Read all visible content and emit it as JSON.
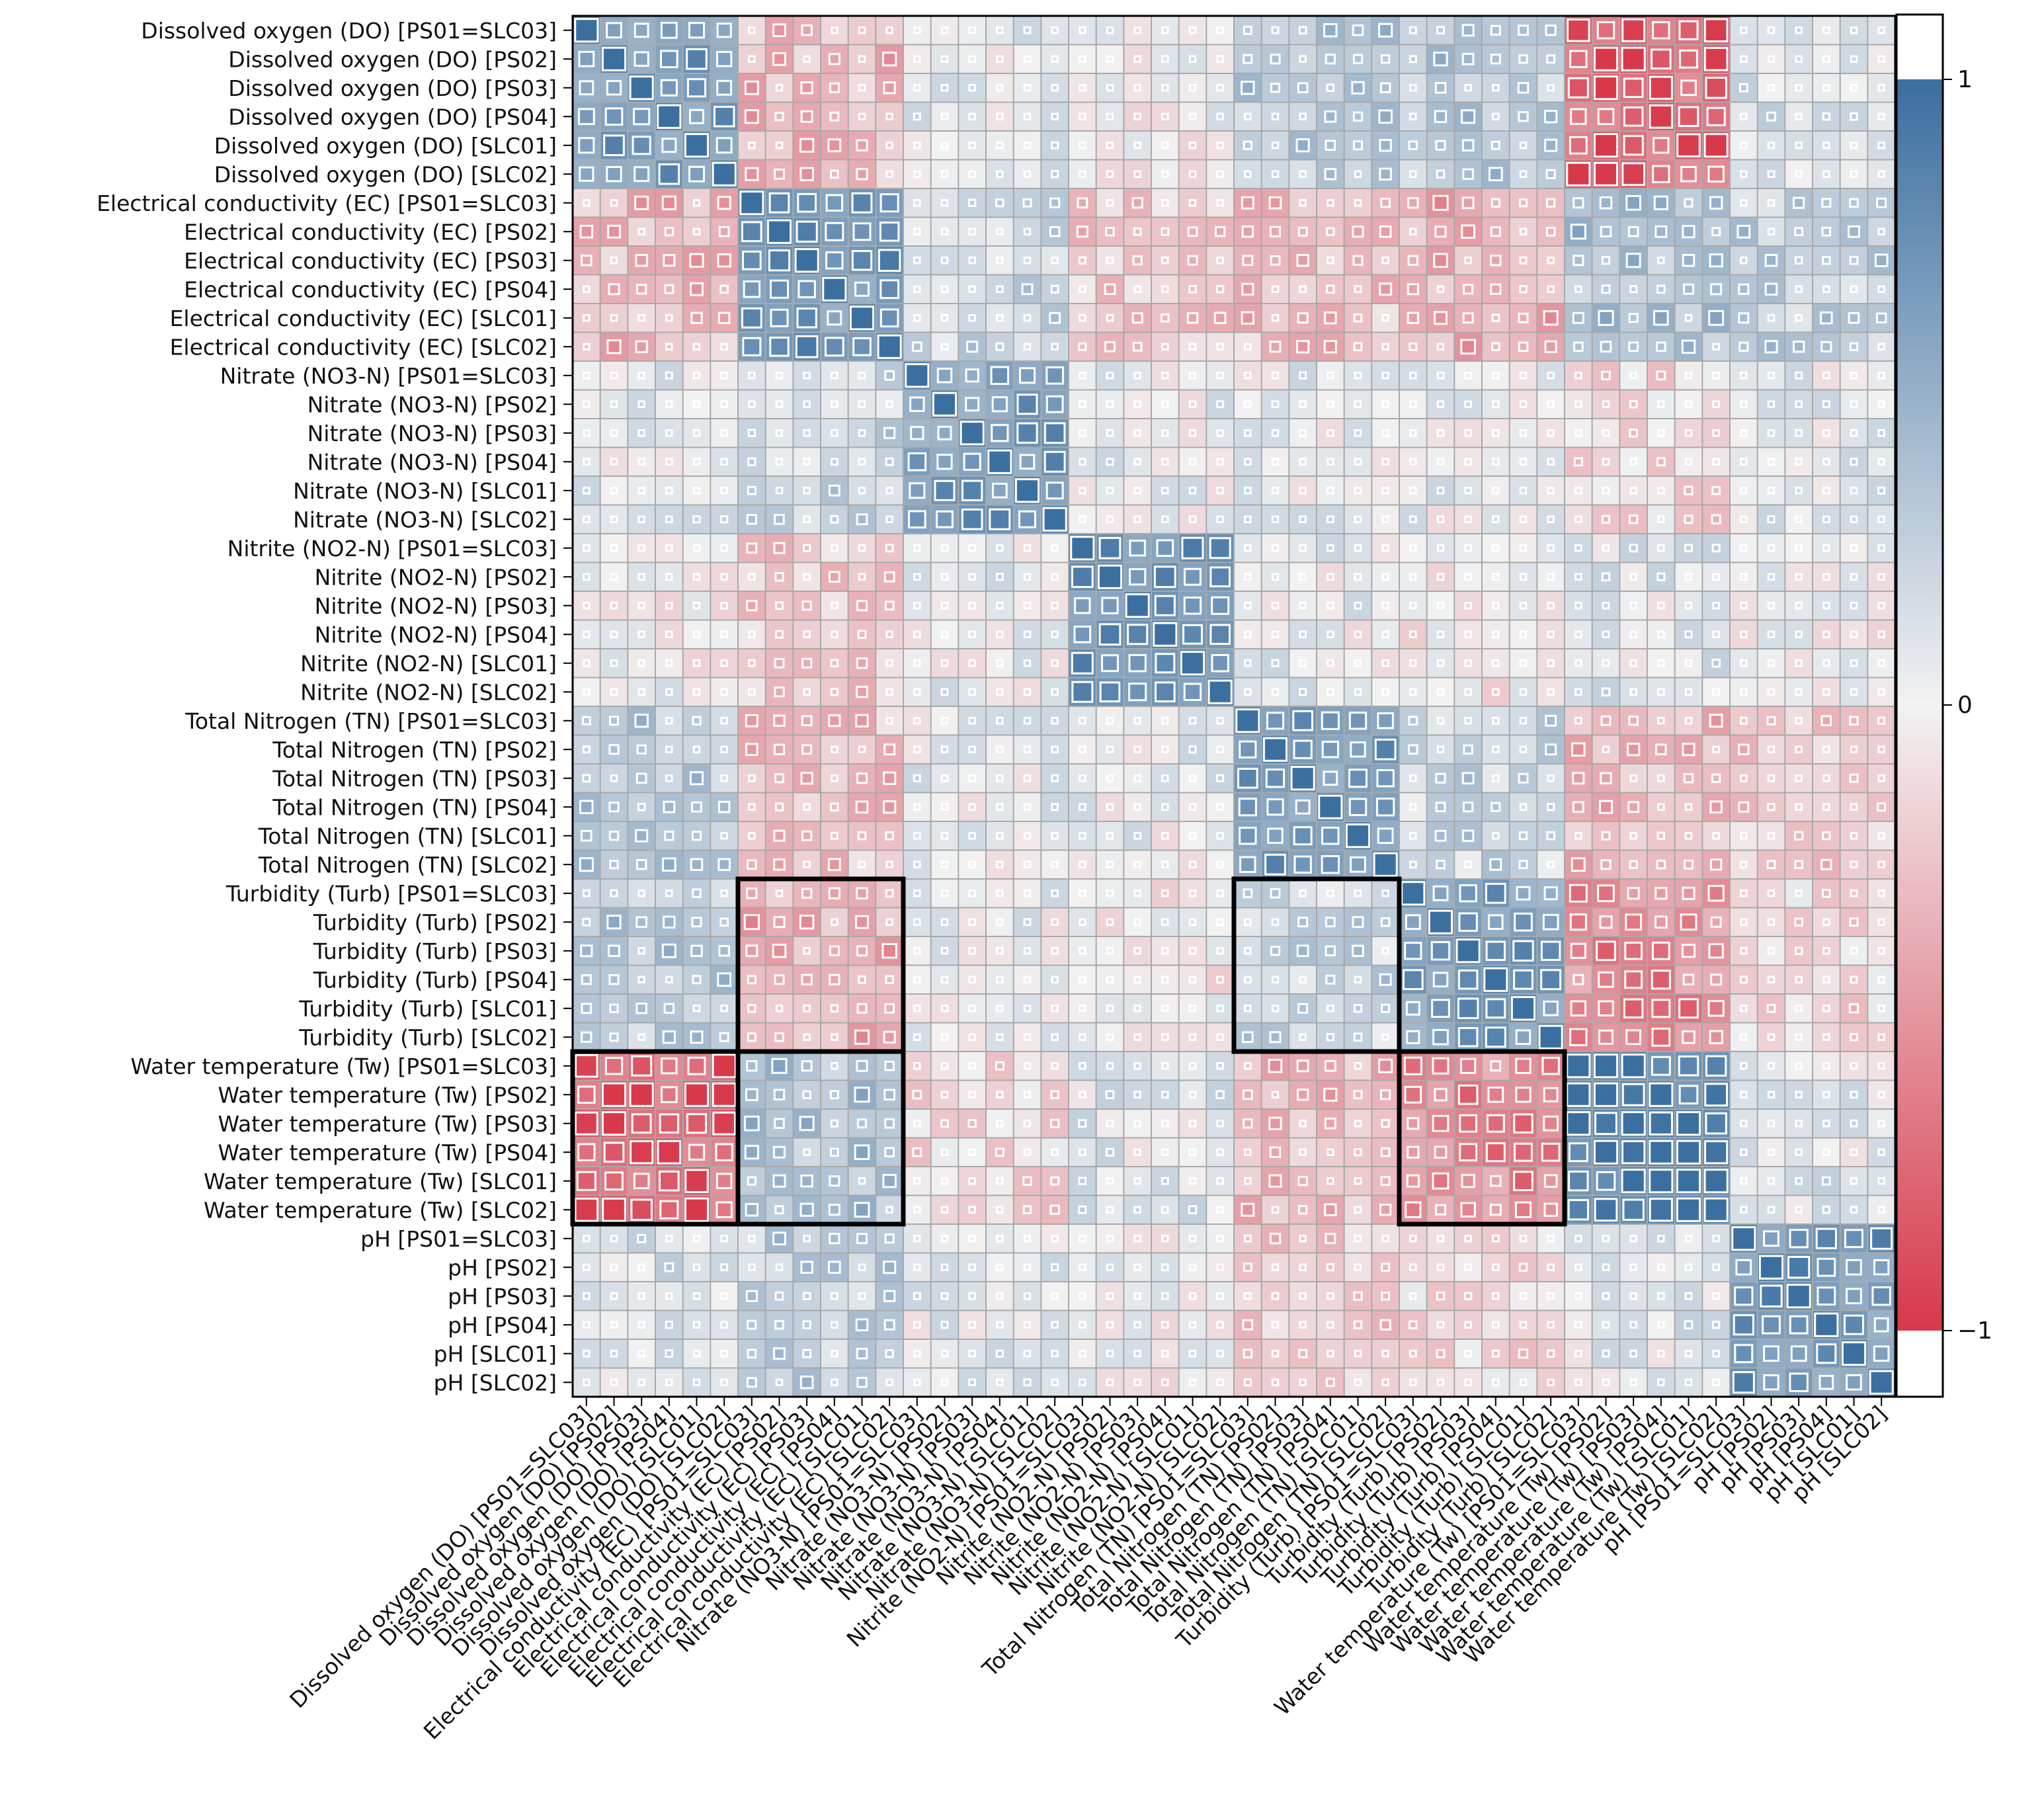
{
  "chart_data": {
    "type": "heatmap",
    "title": "",
    "variables": [
      "Dissolved oxygen (DO) [PS01=SLC03]",
      "Dissolved oxygen (DO) [PS02]",
      "Dissolved oxygen (DO) [PS03]",
      "Dissolved oxygen (DO) [PS04]",
      "Dissolved oxygen (DO) [SLC01]",
      "Dissolved oxygen (DO) [SLC02]",
      "Electrical conductivity (EC) [PS01=SLC03]",
      "Electrical conductivity (EC) [PS02]",
      "Electrical conductivity (EC) [PS03]",
      "Electrical conductivity (EC) [PS04]",
      "Electrical conductivity (EC) [SLC01]",
      "Electrical conductivity (EC) [SLC02]",
      "Nitrate (NO3-N) [PS01=SLC03]",
      "Nitrate (NO3-N) [PS02]",
      "Nitrate (NO3-N) [PS03]",
      "Nitrate (NO3-N) [PS04]",
      "Nitrate (NO3-N) [SLC01]",
      "Nitrate (NO3-N) [SLC02]",
      "Nitrite (NO2-N) [PS01=SLC03]",
      "Nitrite (NO2-N) [PS02]",
      "Nitrite (NO2-N) [PS03]",
      "Nitrite (NO2-N) [PS04]",
      "Nitrite (NO2-N) [SLC01]",
      "Nitrite (NO2-N) [SLC02]",
      "Total Nitrogen (TN) [PS01=SLC03]",
      "Total Nitrogen (TN) [PS02]",
      "Total Nitrogen (TN) [PS03]",
      "Total Nitrogen (TN) [PS04]",
      "Total Nitrogen (TN) [SLC01]",
      "Total Nitrogen (TN) [SLC02]",
      "Turbidity (Turb) [PS01=SLC03]",
      "Turbidity (Turb) [PS02]",
      "Turbidity (Turb) [PS03]",
      "Turbidity (Turb) [PS04]",
      "Turbidity (Turb) [SLC01]",
      "Turbidity (Turb) [SLC02]",
      "Water temperature (Tw) [PS01=SLC03]",
      "Water temperature (Tw) [PS02]",
      "Water temperature (Tw) [PS03]",
      "Water temperature (Tw) [PS04]",
      "Water temperature (Tw) [SLC01]",
      "Water temperature (Tw) [SLC02]",
      "pH [PS01=SLC03]",
      "pH [PS02]",
      "pH [PS03]",
      "pH [PS04]",
      "pH [SLC01]",
      "pH [SLC02]"
    ],
    "groups": [
      "DO",
      "EC",
      "NO3",
      "NO2",
      "TN",
      "Turb",
      "Tw",
      "pH"
    ],
    "group_size": 6,
    "block_correlation_estimates": [
      [
        0.75,
        -0.35,
        0.05,
        0.0,
        0.35,
        0.35,
        -0.85,
        0.15
      ],
      [
        -0.35,
        0.75,
        0.25,
        -0.25,
        -0.3,
        -0.4,
        0.4,
        0.3
      ],
      [
        0.05,
        0.25,
        0.7,
        0.05,
        0.05,
        0.05,
        -0.15,
        0.05
      ],
      [
        0.0,
        -0.25,
        0.05,
        0.8,
        0.05,
        -0.05,
        0.1,
        0.0
      ],
      [
        0.35,
        -0.3,
        0.05,
        0.05,
        0.7,
        0.25,
        -0.35,
        -0.25
      ],
      [
        0.35,
        -0.4,
        0.05,
        -0.05,
        0.25,
        0.7,
        -0.6,
        -0.15
      ],
      [
        -0.85,
        0.4,
        -0.15,
        0.1,
        -0.35,
        -0.6,
        0.95,
        0.1
      ],
      [
        0.15,
        0.3,
        0.05,
        0.0,
        -0.25,
        -0.15,
        0.1,
        0.75
      ]
    ],
    "highlighted_blocks": [
      {
        "rows": "Turbidity (Turb)",
        "cols": "Electrical conductivity (EC)"
      },
      {
        "rows": "Turbidity (Turb)",
        "cols": "Total Nitrogen (TN)"
      },
      {
        "rows": "Water temperature (Tw)",
        "cols": "Dissolved oxygen (DO)"
      },
      {
        "rows": "Water temperature (Tw)",
        "cols": "Electrical conductivity (EC)"
      },
      {
        "rows": "Water temperature (Tw)",
        "cols": "Turbidity (Turb)"
      }
    ],
    "colorbar": {
      "range": [
        -1,
        1
      ],
      "ticks": [
        "1",
        "0",
        "−1"
      ],
      "colors": {
        "positive": "#3b6fa0",
        "zero": "#f2f2f2",
        "negative": "#d7394b"
      }
    }
  }
}
